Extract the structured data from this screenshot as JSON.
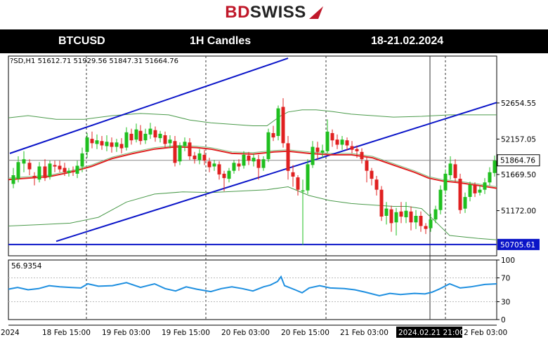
{
  "logo": {
    "brand_part1": "BD",
    "brand_part2": "SWISS",
    "mark_color": "#c0182a"
  },
  "header": {
    "symbol": "BTCUSD",
    "timeframe": "1H Candles",
    "date_range": "18-21.02.2024"
  },
  "chart_data": [
    {
      "type": "candlestick",
      "ohlc_header": "?SD,H1  51612.71  51929.56  51847.31  51664.76",
      "ylim": [
        50550,
        53300
      ],
      "price_ticks": [
        "52654.55",
        "52157.05",
        "51669.50",
        "51172.00"
      ],
      "current_price": "51864.76",
      "support_level": "50705.61",
      "time_labels": [
        "2024",
        "18 Feb 15:00",
        "19 Feb 03:00",
        "19 Feb 15:00",
        "20 Feb 03:00",
        "20 Feb 15:00",
        "21 Feb 03:00",
        "2024.02.21 21:00",
        "2 Feb 03:00"
      ],
      "indicators": [
        "Bollinger Bands (green)",
        "Moving Average (red)"
      ],
      "colors": {
        "bull": "#1fbf1f",
        "bear": "#e02020",
        "ma": "#e02020",
        "bands": "#4a9a4a",
        "trendline": "#0a14c8",
        "support": "#0a14c8"
      }
    },
    {
      "type": "line",
      "name": "RSI",
      "current_value": "56.9354",
      "ylim": [
        0,
        100
      ],
      "levels": [
        "100",
        "70",
        "30",
        "0"
      ],
      "color": "#1e8fe0"
    }
  ]
}
